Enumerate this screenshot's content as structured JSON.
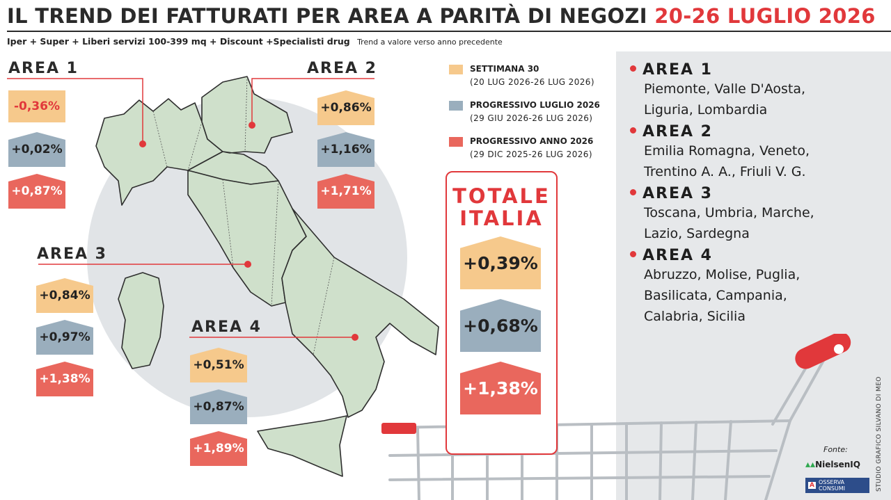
{
  "header": {
    "title_main": "IL TREND DEI FATTURATI PER AREA A PARITÀ DI NEGOZI",
    "title_date": "20-26 LUGLIO 2026",
    "subtitle_bold": "Iper + Super + Liberi servizi 100-399 mq + Discount +Specialisti drug",
    "subtitle_note": "Trend a valore verso anno precedente"
  },
  "legend": [
    {
      "title": "SETTIMANA 30",
      "period": "(20 LUG 2026-26 LUG 2026)",
      "color": "#f6c98c"
    },
    {
      "title": "PROGRESSIVO LUGLIO 2026",
      "period": "(29 GIU 2026-26 LUG 2026)",
      "color": "#9aaebd"
    },
    {
      "title": "PROGRESSIVO ANNO 2026",
      "period": "(29 DIC 2025-26 LUG 2026)",
      "color": "#e9675d"
    }
  ],
  "chart_data": {
    "type": "table",
    "series_names": [
      "SETTIMANA 30",
      "PROGRESSIVO LUGLIO 2026",
      "PROGRESSIVO ANNO 2026"
    ],
    "areas": [
      {
        "label": "AREA 1",
        "values": [
          "-0,36%",
          "+0,02%",
          "+0,87%"
        ]
      },
      {
        "label": "AREA 2",
        "values": [
          "+0,86%",
          "+1,16%",
          "+1,71%"
        ]
      },
      {
        "label": "AREA 3",
        "values": [
          "+0,84%",
          "+0,97%",
          "+1,38%"
        ]
      },
      {
        "label": "AREA 4",
        "values": [
          "+0,51%",
          "+0,87%",
          "+1,89%"
        ]
      }
    ],
    "total": {
      "label_line1": "TOTALE",
      "label_line2": "ITALIA",
      "values": [
        "+0,39%",
        "+0,68%",
        "+1,38%"
      ]
    }
  },
  "regions": [
    {
      "label": "AREA 1",
      "lines": [
        "Piemonte, Valle D'Aosta,",
        "Liguria, Lombardia"
      ]
    },
    {
      "label": "AREA 2",
      "lines": [
        "Emilia Romagna, Veneto,",
        "Trentino A. A., Friuli V. G."
      ]
    },
    {
      "label": "AREA 3",
      "lines": [
        "Toscana, Umbria, Marche,",
        "Lazio, Sardegna"
      ]
    },
    {
      "label": "AREA 4",
      "lines": [
        "Abruzzo, Molise, Puglia,",
        "Basilicata, Campania,",
        "Calabria, Sicilia"
      ]
    }
  ],
  "credit": "STUDIO GRAFICO SILVANO DI MEO",
  "source": {
    "label": "Fonte:",
    "nielsen": "NielsenIQ",
    "osserva": "OSSERVA CONSUMI"
  },
  "colors": {
    "accent": "#e1383b",
    "map_fill": "#cfe0cb",
    "map_stroke": "#2e2e2e"
  }
}
